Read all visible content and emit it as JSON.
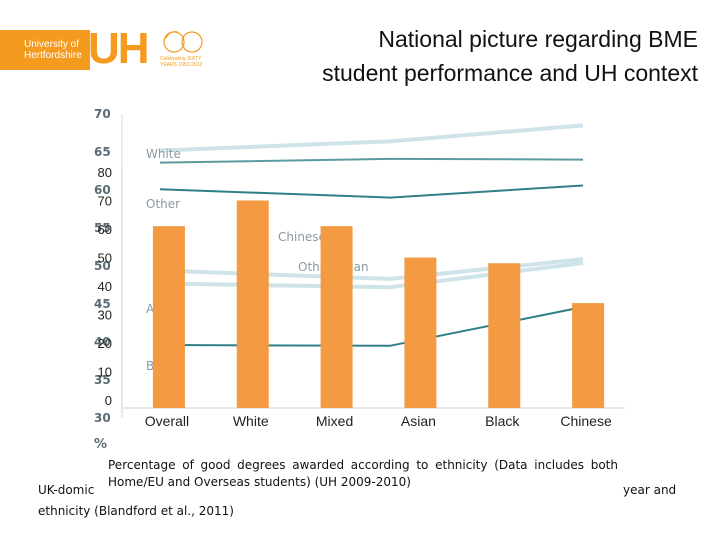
{
  "header": {
    "logo_text_line1": "University of",
    "logo_text_line2": "Hertfordshire",
    "logo_uh": "UH",
    "logo_sixty_text": "Celebrating SIXTY YEARS 1952-2012",
    "title_line1": "National picture regarding BME",
    "title_line2": "student performance and UH context"
  },
  "background_chart": {
    "y_ticks": [
      "70",
      "65",
      "60",
      "55",
      "50",
      "45",
      "40",
      "35",
      "30"
    ],
    "y_unit": "%",
    "series": [
      {
        "name": "White",
        "color": "#cfe3ea",
        "values": [
          65.2,
          66.4,
          68.5
        ]
      },
      {
        "name": "Other",
        "color": "#5b9aa0",
        "values": [
          63.6,
          64.1,
          64.0
        ]
      },
      {
        "name": "Chinese",
        "color": "#2f7f86",
        "values": [
          60.1,
          59.0,
          60.6
        ]
      },
      {
        "name": "Other Asian",
        "color": "#cfe3ea",
        "values": [
          49.4,
          48.3,
          50.9
        ]
      },
      {
        "name": "Asian",
        "color": "#cfe3ea",
        "values": [
          47.7,
          47.2,
          50.4
        ]
      },
      {
        "name": "Black",
        "color": "#2f7f86",
        "values": [
          39.6,
          39.5,
          44.6
        ]
      }
    ]
  },
  "chart_data": {
    "type": "bar",
    "categories": [
      "Overall",
      "White",
      "Mixed",
      "Asian",
      "Black",
      "Chinese"
    ],
    "values": [
      61,
      70,
      61,
      50,
      48,
      34
    ],
    "ylim": [
      0,
      80
    ],
    "yticks": [
      "0",
      "10",
      "20",
      "30",
      "40",
      "50",
      "60",
      "70",
      "80"
    ],
    "bar_color": "#f39a43",
    "caption": "Percentage of good degrees awarded according to ethnicity (Data includes both Home/EU and Overseas students) (UH 2009-2010)"
  },
  "footer": {
    "bg_text_left": "UK-domic",
    "bg_text_right": "year and",
    "bg_text_line2": "ethnicity (Blandford et al., 2011)"
  }
}
